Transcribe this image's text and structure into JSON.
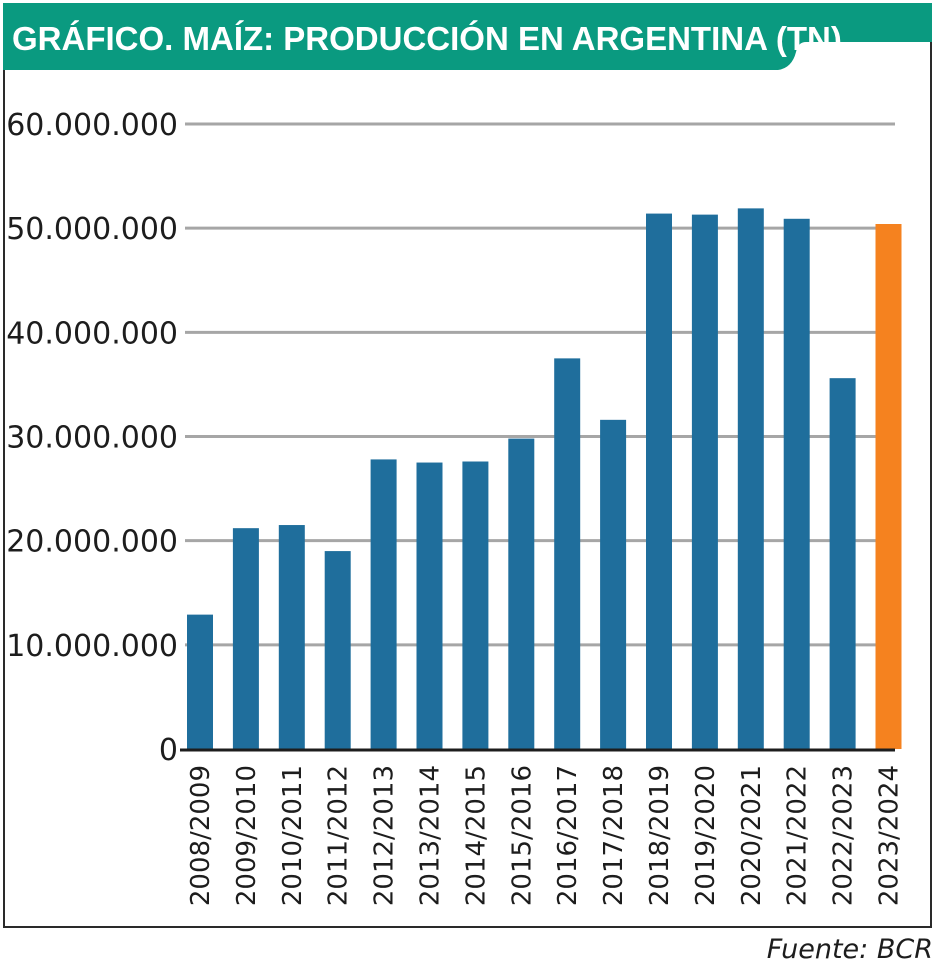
{
  "chart_data": {
    "type": "bar",
    "title": "GRÁFICO. MAÍZ: PRODUCCIÓN EN ARGENTINA (TN)",
    "xlabel": "",
    "ylabel": "",
    "ylim": [
      0,
      60000000
    ],
    "yticks": [
      0,
      10000000,
      20000000,
      30000000,
      40000000,
      50000000,
      60000000
    ],
    "ytick_labels": [
      "0",
      "10.000.000",
      "20.000.000",
      "30.000.000",
      "40.000.000",
      "50.000.000",
      "60.000.000"
    ],
    "categories": [
      "2008/2009",
      "2009/2010",
      "2010/2011",
      "2011/2012",
      "2012/2013",
      "2013/2014",
      "2014/2015",
      "2015/2016",
      "2016/2017",
      "2017/2018",
      "2018/2019",
      "2019/2020",
      "2020/2021",
      "2021/2022",
      "2022/2023",
      "2023/2024"
    ],
    "values": [
      12900000,
      21200000,
      21500000,
      19000000,
      27800000,
      27500000,
      27600000,
      29800000,
      37500000,
      31600000,
      51400000,
      51300000,
      51900000,
      50900000,
      35600000,
      50400000
    ],
    "bar_colors": [
      "#1f6e9c",
      "#1f6e9c",
      "#1f6e9c",
      "#1f6e9c",
      "#1f6e9c",
      "#1f6e9c",
      "#1f6e9c",
      "#1f6e9c",
      "#1f6e9c",
      "#1f6e9c",
      "#1f6e9c",
      "#1f6e9c",
      "#1f6e9c",
      "#1f6e9c",
      "#1f6e9c",
      "#f5821f"
    ],
    "grid": true
  },
  "colors": {
    "header_bg": "#0a9a80",
    "gridline": "#a6a6a6",
    "axis": "#1d1d1d",
    "text": "#1d1d1d"
  },
  "source": "Fuente: BCR"
}
